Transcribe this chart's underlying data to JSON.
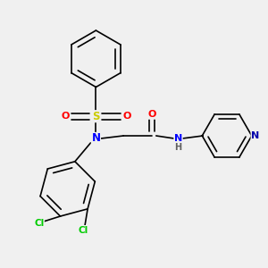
{
  "background_color": "#f0f0f0",
  "bond_color": "#000000",
  "atom_colors": {
    "N": "#0000ff",
    "O": "#ff0000",
    "S": "#cccc00",
    "Cl": "#00cc00",
    "C": "#000000",
    "H": "#606060",
    "pyN": "#0000aa"
  },
  "figsize": [
    3.0,
    3.0
  ],
  "dpi": 100
}
